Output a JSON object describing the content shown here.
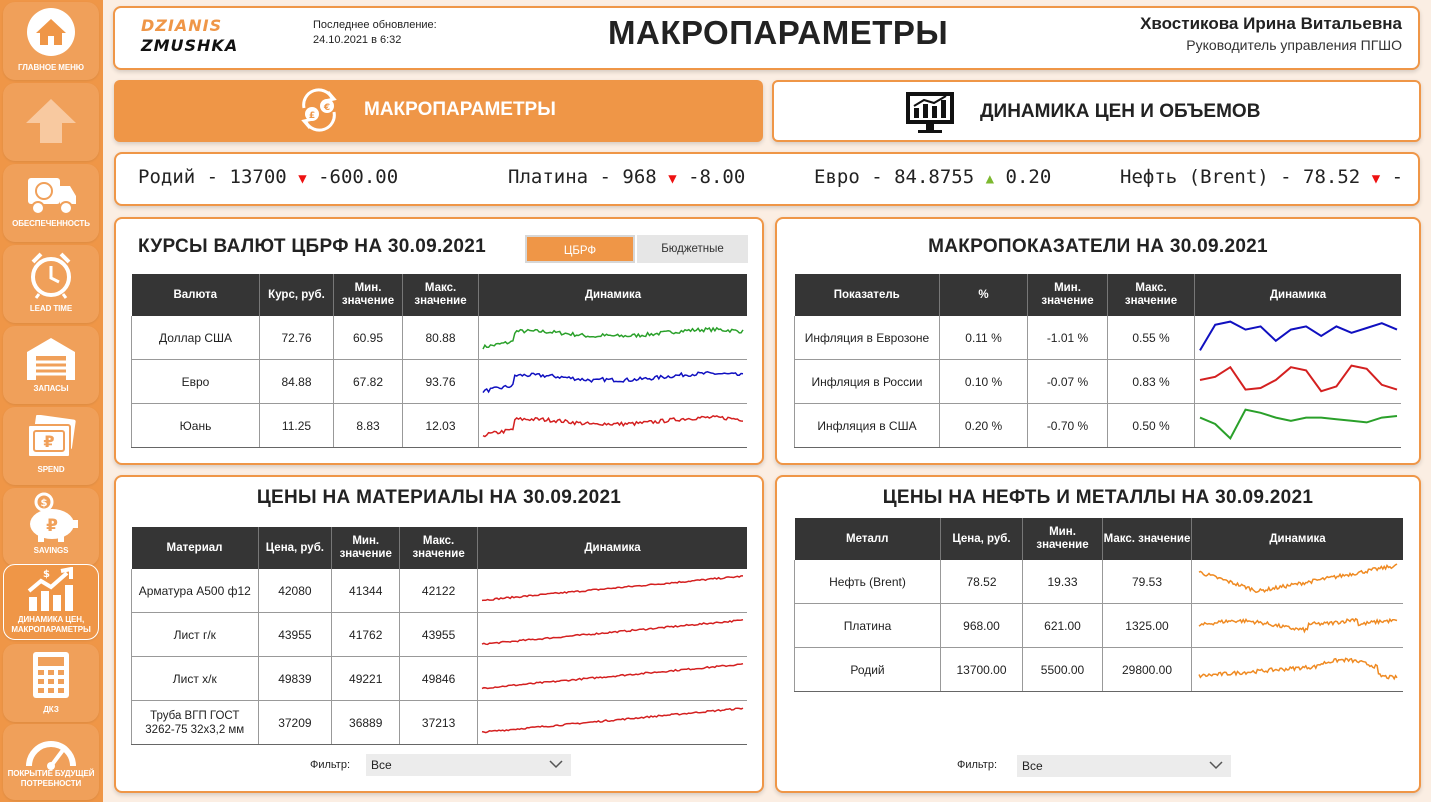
{
  "sidebar": {
    "items": [
      {
        "label": "ГЛАВНОЕ МЕНЮ",
        "icon": "home-icon"
      },
      {
        "label": "",
        "icon": "arrow-up-icon"
      },
      {
        "label": "ОБЕСПЕЧЕННОСТЬ",
        "icon": "truck-icon"
      },
      {
        "label": "LEAD TIME",
        "icon": "alarm-clock-icon"
      },
      {
        "label": "ЗАПАСЫ",
        "icon": "warehouse-icon"
      },
      {
        "label": "SPEND",
        "icon": "ruble-banknote-icon"
      },
      {
        "label": "SAVINGS",
        "icon": "piggy-bank-icon"
      },
      {
        "label": "ДИНАМИКА ЦЕН, МАКРОПАРАМЕТРЫ",
        "icon": "growth-chart-icon"
      },
      {
        "label": "ДКЗ",
        "icon": "calculator-icon"
      },
      {
        "label": "ПОКРЫТИЕ БУДУЩЕЙ ПОТРЕБНОСТИ",
        "icon": "gauge-icon"
      }
    ]
  },
  "header": {
    "logo_line1": "DZIANIS",
    "logo_line2": "ZMUSHKA",
    "updated_label": "Последнее обновление:",
    "updated_value": "24.10.2021 в 6:32",
    "title": "МАКРОПАРАМЕТРЫ",
    "user_name": "Хвостикова Ирина Витальевна",
    "user_role": "Руководитель управления ПГШО"
  },
  "tabs": {
    "macro": "МАКРОПАРАМЕТРЫ",
    "dynamics": "ДИНАМИКА ЦЕН И ОБЪЕМОВ"
  },
  "ticker": [
    {
      "name": "Родий",
      "value": "13700",
      "dir": "▼",
      "change": "-600.00"
    },
    {
      "name": "Платина",
      "value": "968",
      "dir": "▼",
      "change": "-8.00"
    },
    {
      "name": "Евро",
      "value": "84.8755",
      "dir": "▲",
      "change": "0.20"
    },
    {
      "name": "Нефть (Brent)",
      "value": "78.52",
      "dir": "▼",
      "change": "-"
    }
  ],
  "colors": {
    "accent": "#ef9647",
    "green": "#2aa02a",
    "blue": "#1010c0",
    "red": "#d42020",
    "orange": "#ef8a22"
  },
  "currency": {
    "title": "КУРСЫ ВАЛЮТ ЦБРФ НА 30.09.2021",
    "toggle_active": "ЦБРФ",
    "toggle_other": "Бюджетные",
    "headers": [
      "Валюта",
      "Курс, руб.",
      "Мин. значение",
      "Макс. значение",
      "Динамика"
    ],
    "rows": [
      {
        "name": "Доллар США",
        "rate": "72.76",
        "min": "60.95",
        "max": "80.88",
        "color": "green"
      },
      {
        "name": "Евро",
        "rate": "84.88",
        "min": "67.82",
        "max": "93.76",
        "color": "blue"
      },
      {
        "name": "Юань",
        "rate": "11.25",
        "min": "8.83",
        "max": "12.03",
        "color": "red"
      }
    ]
  },
  "macro": {
    "title": "МАКРОПОКАЗАТЕЛИ НА 30.09.2021",
    "headers": [
      "Показатель",
      "%",
      "Мин. значение",
      "Макс. значение",
      "Динамика"
    ],
    "rows": [
      {
        "name": "Инфляция в Еврозоне",
        "pct": "0.11 %",
        "min": "-1.01 %",
        "max": "0.55 %",
        "color": "blue"
      },
      {
        "name": "Инфляция в России",
        "pct": "0.10 %",
        "min": "-0.07 %",
        "max": "0.83 %",
        "color": "red"
      },
      {
        "name": "Инфляция в США",
        "pct": "0.20 %",
        "min": "-0.70 %",
        "max": "0.50 %",
        "color": "green"
      }
    ]
  },
  "materials": {
    "title": "ЦЕНЫ НА МАТЕРИАЛЫ НА 30.09.2021",
    "headers": [
      "Материал",
      "Цена, руб.",
      "Мин. значение",
      "Макс. значение",
      "Динамика"
    ],
    "rows": [
      {
        "name": "Арматура А500 ф12",
        "price": "42080",
        "min": "41344",
        "max": "42122",
        "color": "red"
      },
      {
        "name": "Лист г/к",
        "price": "43955",
        "min": "41762",
        "max": "43955",
        "color": "red"
      },
      {
        "name": "Лист х/к",
        "price": "49839",
        "min": "49221",
        "max": "49846",
        "color": "red"
      },
      {
        "name": "Труба ВГП ГОСТ 3262-75 32х3,2 мм",
        "price": "37209",
        "min": "36889",
        "max": "37213",
        "color": "red"
      }
    ],
    "filter_label": "Фильтр:",
    "filter_value": "Все"
  },
  "metals": {
    "title": "ЦЕНЫ НА НЕФТЬ И МЕТАЛЛЫ НА 30.09.2021",
    "headers": [
      "Металл",
      "Цена, руб.",
      "Мин. значение",
      "Макс. значение",
      "Динамика"
    ],
    "rows": [
      {
        "name": "Нефть (Brent)",
        "price": "78.52",
        "min": "19.33",
        "max": "79.53",
        "color": "orange"
      },
      {
        "name": "Платина",
        "price": "968.00",
        "min": "621.00",
        "max": "1325.00",
        "color": "orange"
      },
      {
        "name": "Родий",
        "price": "13700.00",
        "min": "5500.00",
        "max": "29800.00",
        "color": "orange"
      }
    ],
    "filter_label": "Фильтр:",
    "filter_value": "Все"
  }
}
